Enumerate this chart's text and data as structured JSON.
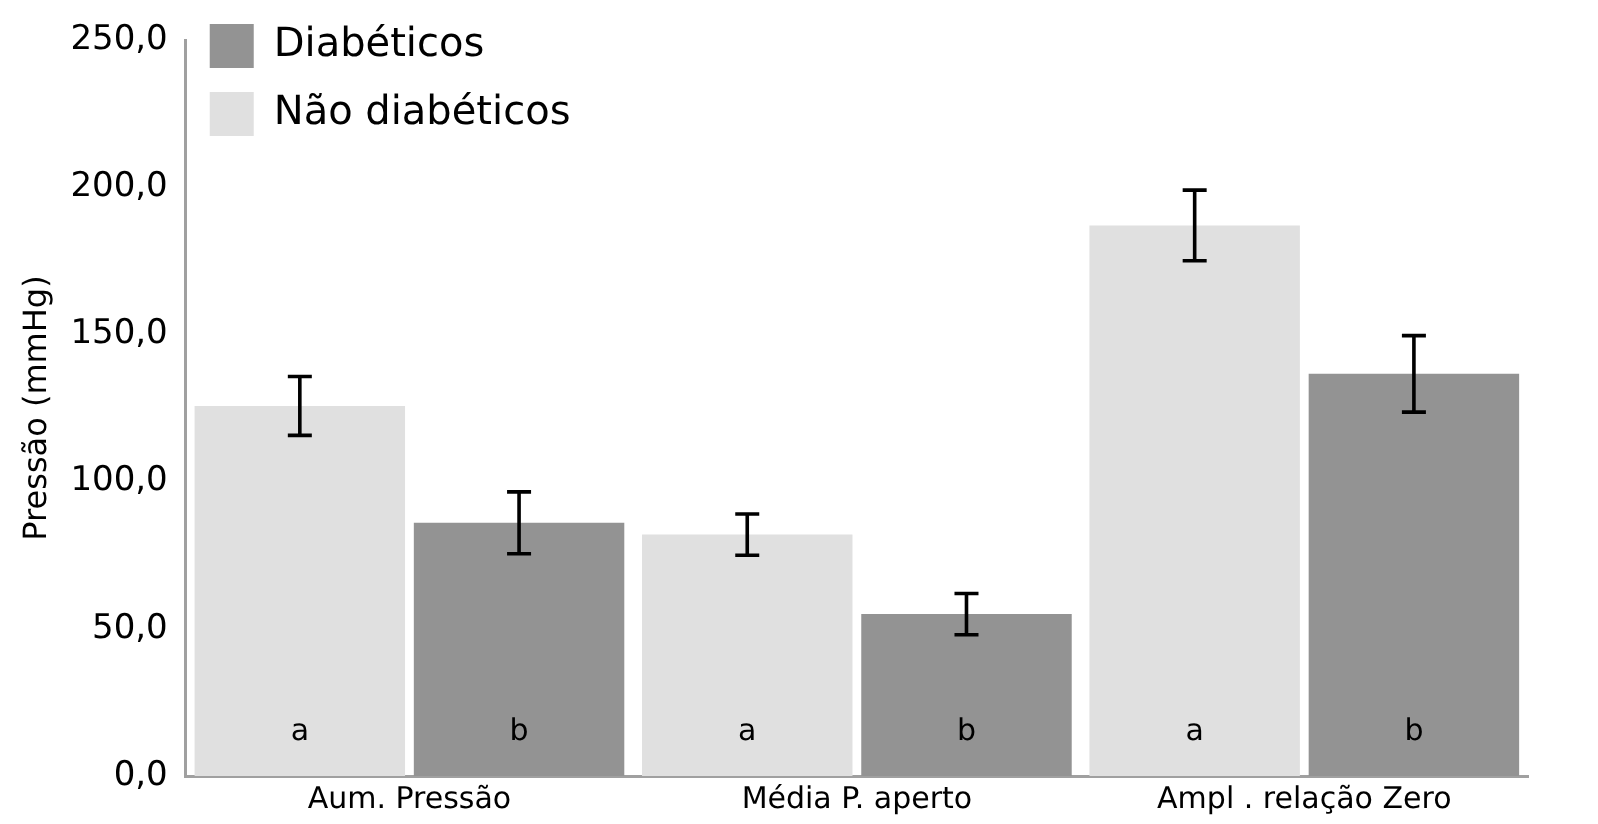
{
  "chart_data": {
    "type": "bar",
    "ylabel": "Pressão (mmHg)",
    "categories": [
      "Aum. Pressão",
      "Média P. aperto",
      "Ampl . relação Zero"
    ],
    "series": [
      {
        "name": "Não diabéticos",
        "color": "#e0e0e0",
        "values": [
          125.7,
          82,
          187
        ],
        "errors": [
          10,
          7,
          12
        ],
        "value_labels": [
          "a",
          "a",
          "a"
        ]
      },
      {
        "name": "Diabéticos",
        "color": "#939393",
        "values": [
          86,
          55,
          136.6
        ],
        "errors": [
          10.5,
          7,
          13
        ],
        "value_labels": [
          "b",
          "b",
          "b"
        ]
      }
    ],
    "ylim": [
      0,
      250
    ],
    "yticks": [
      {
        "value": 0,
        "label": "0,0"
      },
      {
        "value": 50,
        "label": "50,0"
      },
      {
        "value": 100,
        "label": "100,0"
      },
      {
        "value": 150,
        "label": "150,0"
      },
      {
        "value": 200,
        "label": "200,0"
      },
      {
        "value": 250,
        "label": "250,0"
      }
    ],
    "grid": false,
    "legend": "top left"
  }
}
